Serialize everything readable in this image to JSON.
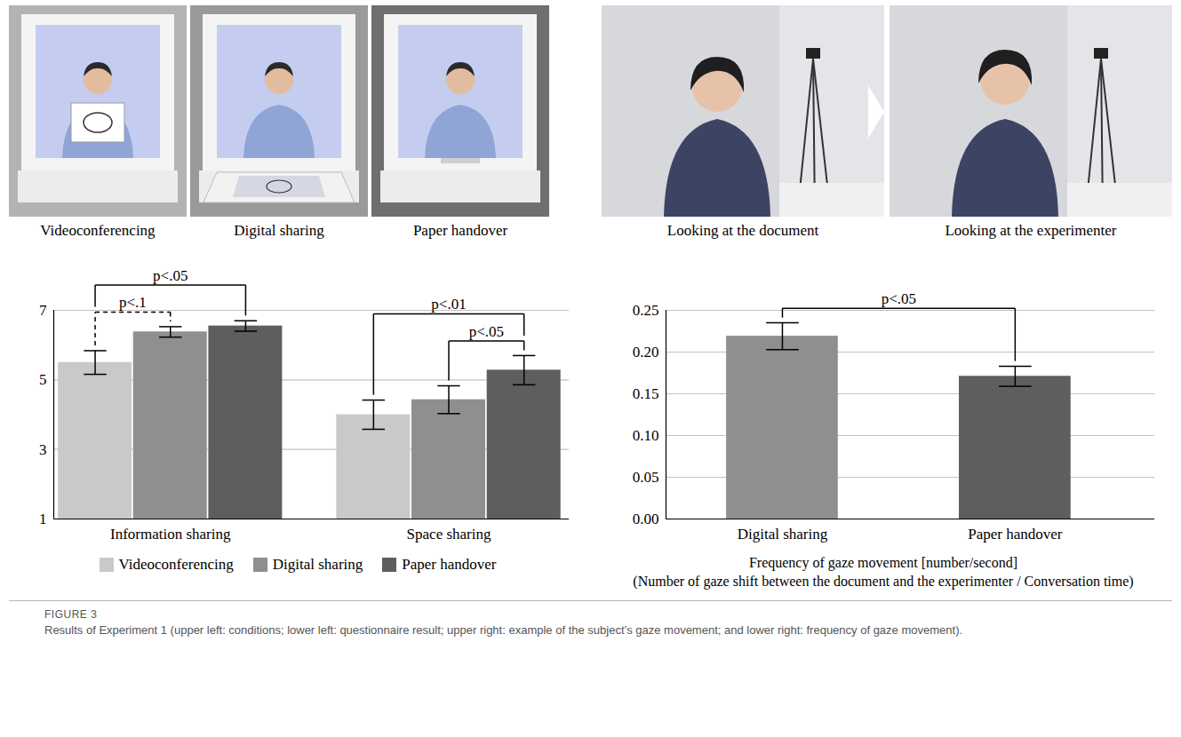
{
  "photos": {
    "conditions": [
      "Videoconferencing",
      "Digital sharing",
      "Paper handover"
    ],
    "gaze": [
      "Looking at the document",
      "Looking at the experimenter"
    ]
  },
  "chart_data": [
    {
      "type": "bar",
      "categories": [
        "Information sharing",
        "Space sharing"
      ],
      "series": [
        {
          "name": "Videoconferencing",
          "color": "#c9c9c9",
          "values": [
            5.5,
            4.0
          ],
          "errors": [
            0.34,
            0.42
          ]
        },
        {
          "name": "Digital sharing",
          "color": "#8f8f8f",
          "values": [
            6.38,
            4.43
          ],
          "errors": [
            0.15,
            0.4
          ]
        },
        {
          "name": "Paper handover",
          "color": "#5e5e5e",
          "values": [
            6.55,
            5.28
          ],
          "errors": [
            0.15,
            0.42
          ]
        }
      ],
      "ylim": [
        1,
        7
      ],
      "yticks": [
        1,
        3,
        5,
        7
      ],
      "grid": true,
      "legend": "bottom",
      "significance": [
        {
          "category": "Information sharing",
          "from": "Videoconferencing",
          "to": "Paper handover",
          "label": "p<.05",
          "line_style": "solid"
        },
        {
          "category": "Information sharing",
          "from": "Videoconferencing",
          "to": "Digital sharing",
          "label": "p<.1",
          "line_style": "dashed"
        },
        {
          "category": "Space sharing",
          "from": "Videoconferencing",
          "to": "Paper handover",
          "label": "p<.01",
          "line_style": "solid"
        },
        {
          "category": "Space sharing",
          "from": "Digital sharing",
          "to": "Paper handover",
          "label": "p<.05",
          "line_style": "solid"
        }
      ]
    },
    {
      "type": "bar",
      "categories": [
        "Digital sharing",
        "Paper handover"
      ],
      "values": [
        0.219,
        0.171
      ],
      "errors": [
        0.016,
        0.012
      ],
      "colors": [
        "#8f8f8f",
        "#5e5e5e"
      ],
      "ylim": [
        0,
        0.25
      ],
      "yticks": [
        {
          "value": 0,
          "label": "0.00"
        },
        {
          "value": 0.05,
          "label": "0.05"
        },
        {
          "value": 0.1,
          "label": "0.10"
        },
        {
          "value": 0.15,
          "label": "0.15"
        },
        {
          "value": 0.2,
          "label": "0.20"
        },
        {
          "value": 0.25,
          "label": "0.25"
        }
      ],
      "grid": true,
      "xlabel": [
        "Frequency of gaze movement [number/second]",
        "(Number of gaze shift between the document and the experimenter / Conversation time)"
      ],
      "significance": [
        {
          "from": "Digital sharing",
          "to": "Paper handover",
          "label": "p<.05",
          "line_style": "solid"
        }
      ]
    }
  ],
  "caption": {
    "label": "FIGURE 3",
    "text": "Results of Experiment 1 (upper left: conditions; lower left: questionnaire result; upper right: example of the subject’s gaze movement; and lower right: frequency of gaze movement)."
  }
}
